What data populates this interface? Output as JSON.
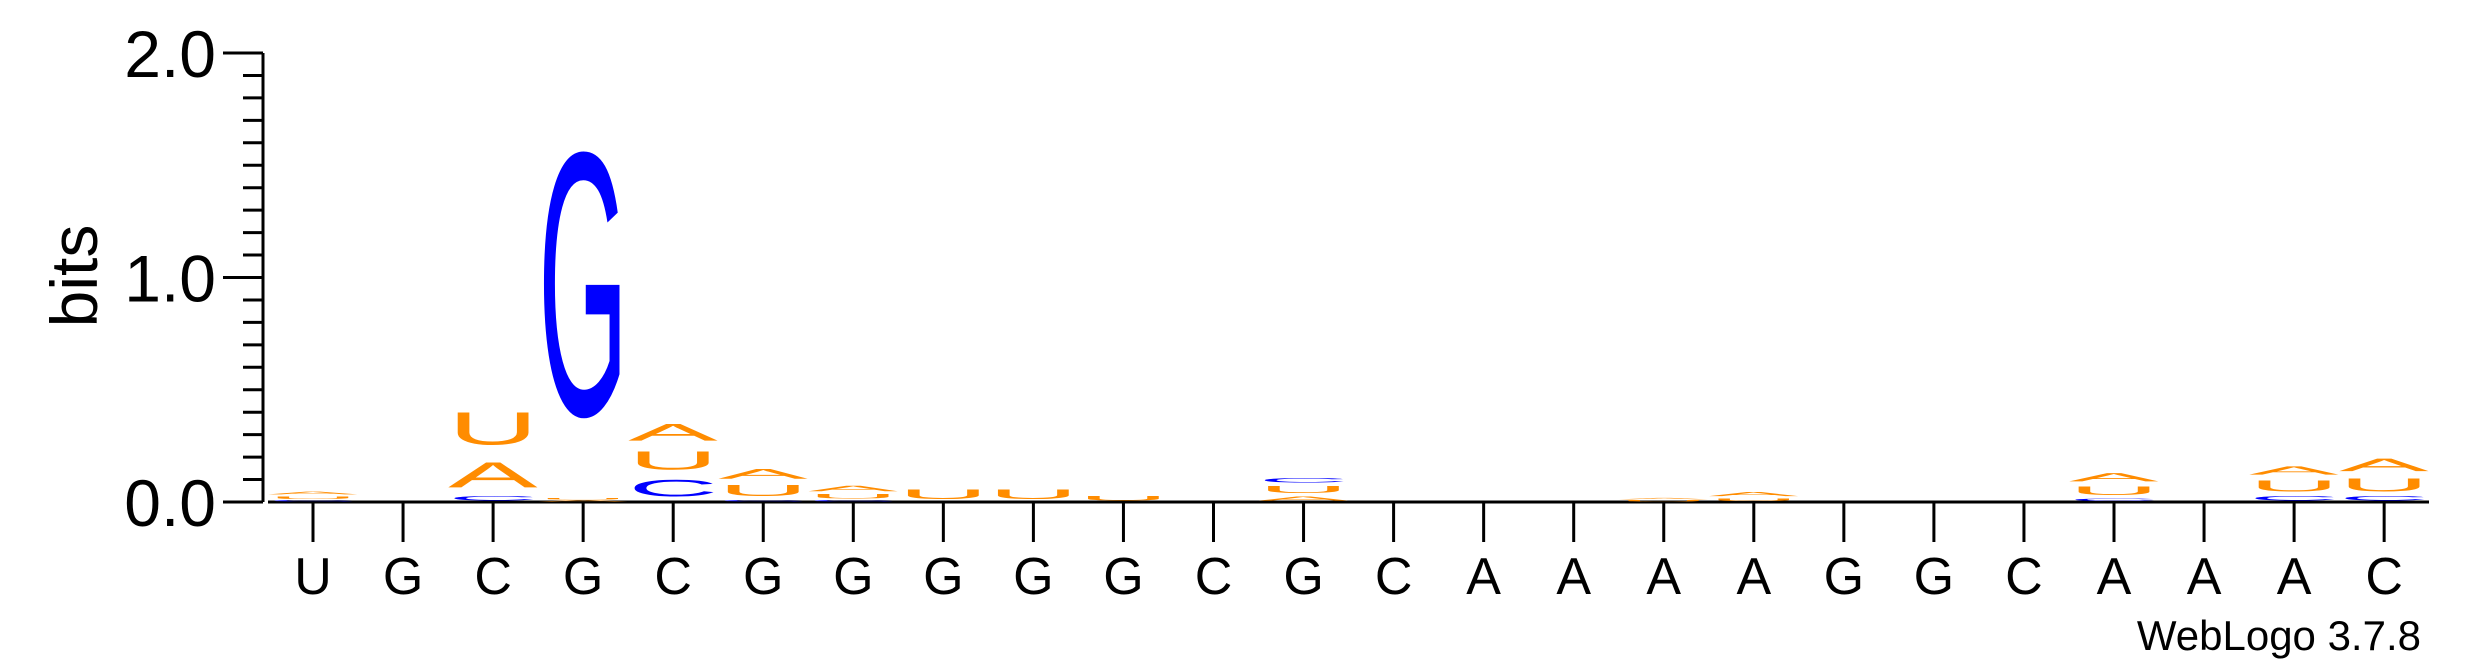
{
  "chart_data": {
    "type": "sequence-logo",
    "ylabel": "bits",
    "ylim": [
      0,
      2.0
    ],
    "yticks": [
      "0.0",
      "1.0",
      "2.0"
    ],
    "x_labels": [
      "U",
      "G",
      "C",
      "G",
      "C",
      "G",
      "G",
      "G",
      "G",
      "G",
      "C",
      "G",
      "C",
      "A",
      "A",
      "A",
      "A",
      "G",
      "G",
      "C",
      "A",
      "A",
      "A",
      "C"
    ],
    "colors": {
      "A": "#ff8c00",
      "U": "#ff8c00",
      "G": "#0000ff",
      "C": "#0000ff"
    },
    "columns": [
      [
        {
          "letter": "C",
          "bits": 0.01
        },
        {
          "letter": "U",
          "bits": 0.02
        },
        {
          "letter": "A",
          "bits": 0.02
        }
      ],
      [],
      [
        {
          "letter": "C",
          "bits": 0.03
        },
        {
          "letter": "A",
          "bits": 0.18
        },
        {
          "letter": "U",
          "bits": 0.23
        }
      ],
      [
        {
          "letter": "A",
          "bits": 0.01
        },
        {
          "letter": "U",
          "bits": 0.01
        },
        {
          "letter": "G",
          "bits": 1.88
        }
      ],
      [
        {
          "letter": "C",
          "bits": 0.12
        },
        {
          "letter": "U",
          "bits": 0.13
        },
        {
          "letter": "A",
          "bits": 0.12
        }
      ],
      [
        {
          "letter": "C",
          "bits": 0.01
        },
        {
          "letter": "U",
          "bits": 0.08
        },
        {
          "letter": "A",
          "bits": 0.07
        }
      ],
      [
        {
          "letter": "C",
          "bits": 0.01
        },
        {
          "letter": "U",
          "bits": 0.03
        },
        {
          "letter": "A",
          "bits": 0.04
        }
      ],
      [
        {
          "letter": "U",
          "bits": 0.07
        }
      ],
      [
        {
          "letter": "U",
          "bits": 0.07
        }
      ],
      [
        {
          "letter": "U",
          "bits": 0.03
        }
      ],
      [],
      [
        {
          "letter": "A",
          "bits": 0.03
        },
        {
          "letter": "U",
          "bits": 0.05
        },
        {
          "letter": "C",
          "bits": 0.03
        }
      ],
      [],
      [],
      [],
      [
        {
          "letter": "U",
          "bits": 0.01
        },
        {
          "letter": "A",
          "bits": 0.01
        }
      ],
      [
        {
          "letter": "U",
          "bits": 0.02
        },
        {
          "letter": "A",
          "bits": 0.03
        }
      ],
      [],
      [],
      [],
      [
        {
          "letter": "C",
          "bits": 0.02
        },
        {
          "letter": "U",
          "bits": 0.06
        },
        {
          "letter": "A",
          "bits": 0.06
        }
      ],
      [],
      [
        {
          "letter": "C",
          "bits": 0.03
        },
        {
          "letter": "U",
          "bits": 0.08
        },
        {
          "letter": "A",
          "bits": 0.06
        }
      ],
      [
        {
          "letter": "C",
          "bits": 0.03
        },
        {
          "letter": "U",
          "bits": 0.09
        },
        {
          "letter": "A",
          "bits": 0.09
        }
      ]
    ],
    "credit": "WebLogo 3.7.8"
  }
}
